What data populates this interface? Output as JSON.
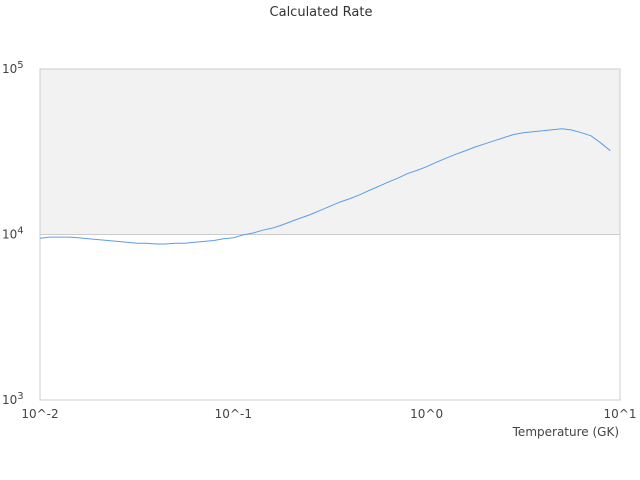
{
  "chart_data": {
    "type": "line",
    "title": "Calculated Rate",
    "xlabel": "Temperature (GK)",
    "ylabel": "",
    "xscale": "log",
    "yscale": "log",
    "xlim": [
      0.01,
      10
    ],
    "ylim": [
      1000,
      100000
    ],
    "grid": false,
    "legend": "none",
    "x_ticks": [
      {
        "value": 0.01,
        "label": "10^-2"
      },
      {
        "value": 0.1,
        "label": "10^-1"
      },
      {
        "value": 1,
        "label": "10^0"
      },
      {
        "value": 10,
        "label": "10^1"
      }
    ],
    "y_ticks": [
      {
        "value": 1000,
        "base": "10",
        "exp": "3"
      },
      {
        "value": 10000,
        "base": "10",
        "exp": "4"
      },
      {
        "value": 100000,
        "base": "10",
        "exp": "5"
      }
    ],
    "colors": {
      "line": "#5b9ee6",
      "band": "#f2f2f2",
      "frame": "#cccccc"
    },
    "series": [
      {
        "x": [
          0.01,
          0.0112,
          0.0126,
          0.0141,
          0.0158,
          0.0178,
          0.02,
          0.0224,
          0.0251,
          0.0282,
          0.0316,
          0.0355,
          0.0398,
          0.0447,
          0.0501,
          0.0562,
          0.0631,
          0.0708,
          0.0794,
          0.0891,
          0.1,
          0.112,
          0.126,
          0.141,
          0.158,
          0.178,
          0.2,
          0.224,
          0.251,
          0.282,
          0.316,
          0.355,
          0.398,
          0.447,
          0.501,
          0.562,
          0.631,
          0.708,
          0.794,
          0.891,
          1.0,
          1.12,
          1.26,
          1.41,
          1.58,
          1.78,
          2.0,
          2.24,
          2.51,
          2.82,
          3.16,
          3.55,
          3.98,
          4.47,
          5.01,
          5.62,
          6.31,
          7.08,
          7.94,
          8.91
        ],
        "y": [
          9500,
          9650,
          9650,
          9650,
          9550,
          9430,
          9310,
          9200,
          9080,
          8970,
          8860,
          8860,
          8760,
          8760,
          8860,
          8860,
          8970,
          9080,
          9200,
          9430,
          9550,
          9930,
          10200,
          10600,
          10900,
          11400,
          12000,
          12600,
          13200,
          14000,
          14800,
          15700,
          16400,
          17300,
          18400,
          19500,
          20700,
          21900,
          23300,
          24400,
          25700,
          27300,
          28900,
          30500,
          32000,
          33800,
          35300,
          36900,
          38500,
          40200,
          41200,
          41800,
          42400,
          43000,
          43500,
          42800,
          41200,
          39500,
          35800,
          32100
        ]
      }
    ]
  }
}
